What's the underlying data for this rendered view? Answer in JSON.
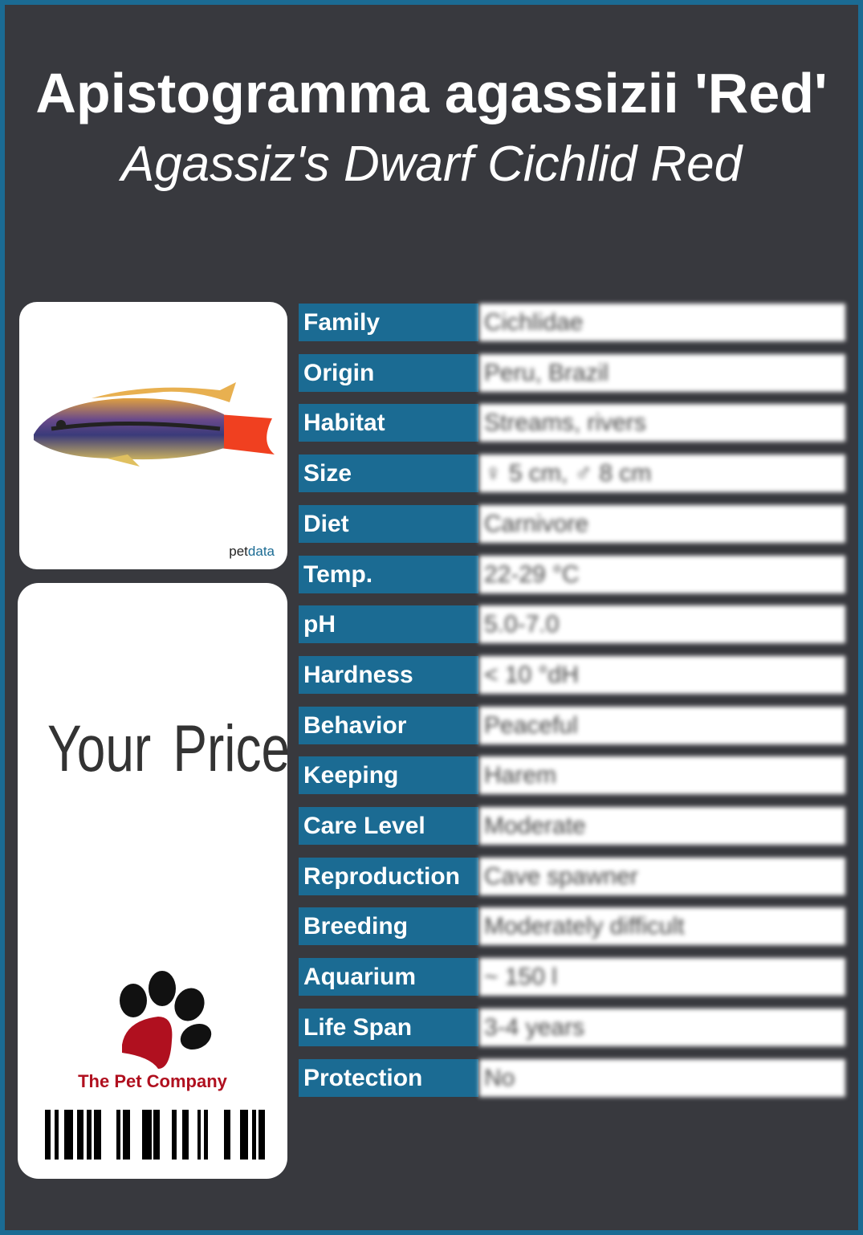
{
  "title": "Apistogramma agassizii 'Red'",
  "subtitle": "Agassiz's Dwarf Cichlid Red",
  "photo": {
    "watermark_a": "pet",
    "watermark_b": "data"
  },
  "price_label": "Your Price",
  "company": "The Pet Company",
  "colors": {
    "accent": "#1b6b93",
    "background": "#38393e",
    "brand_red": "#b0101f"
  },
  "rows": [
    {
      "label": "Family",
      "value": "Cichlidae"
    },
    {
      "label": "Origin",
      "value": "Peru, Brazil"
    },
    {
      "label": "Habitat",
      "value": "Streams, rivers"
    },
    {
      "label": "Size",
      "value": "♀ 5 cm, ♂ 8 cm"
    },
    {
      "label": "Diet",
      "value": "Carnivore"
    },
    {
      "label": "Temp.",
      "value": "22-29 °C"
    },
    {
      "label": "pH",
      "value": "5.0-7.0"
    },
    {
      "label": "Hardness",
      "value": "< 10 °dH"
    },
    {
      "label": "Behavior",
      "value": "Peaceful"
    },
    {
      "label": "Keeping",
      "value": "Harem"
    },
    {
      "label": "Care Level",
      "value": "Moderate"
    },
    {
      "label": "Reproduction",
      "value": "Cave spawner"
    },
    {
      "label": "Breeding",
      "value": "Moderately difficult"
    },
    {
      "label": "Aquarium",
      "value": "~ 150 l"
    },
    {
      "label": "Life Span",
      "value": "3-4 years"
    },
    {
      "label": "Protection",
      "value": "No"
    }
  ]
}
